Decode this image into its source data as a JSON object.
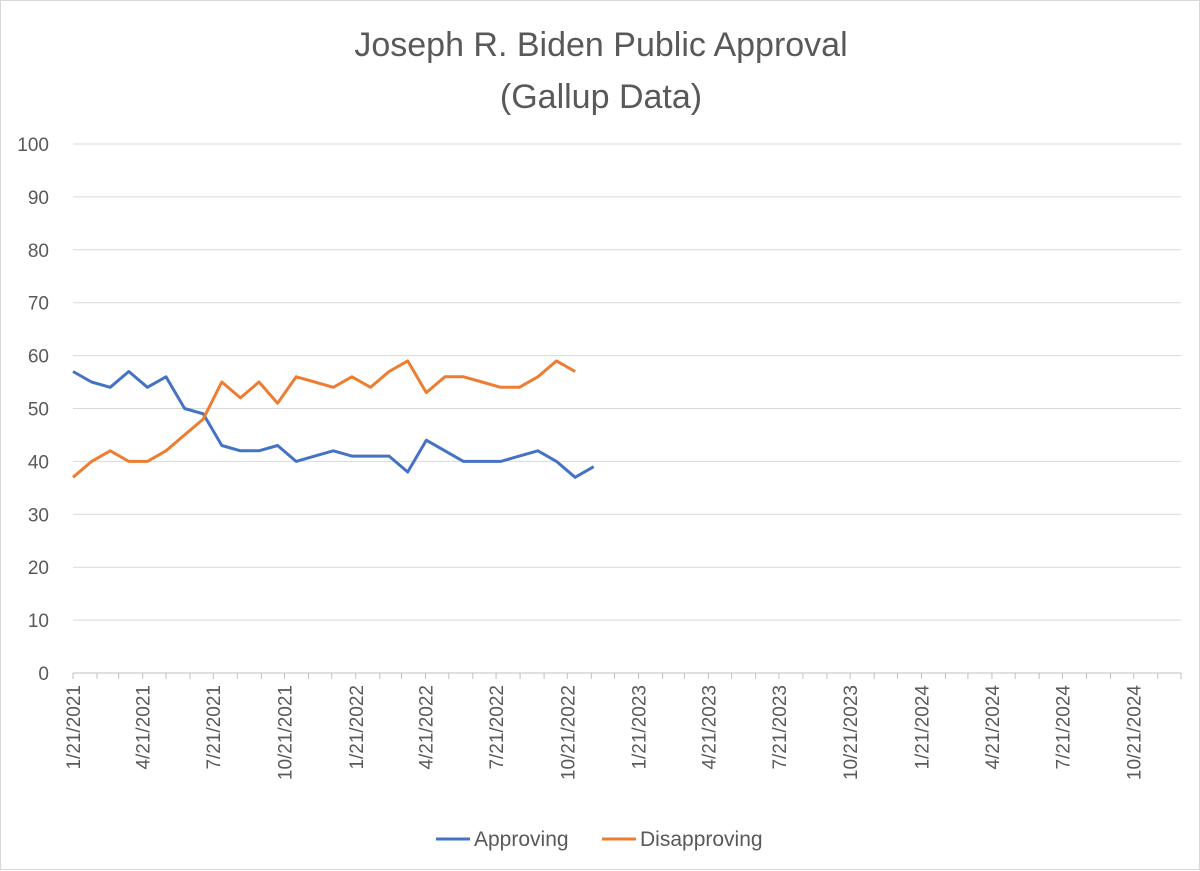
{
  "chart_data": {
    "type": "line",
    "title": "Joseph R. Biden Public Approval",
    "subtitle": "(Gallup Data)",
    "xlabel": "",
    "ylabel": "",
    "x_axis_type": "date",
    "xlim": [
      "2021-01-21",
      "2024-12-21"
    ],
    "ylim": [
      0,
      100
    ],
    "y_ticks": [
      "0",
      "10",
      "20",
      "30",
      "40",
      "50",
      "60",
      "70",
      "80",
      "90",
      "100"
    ],
    "x_ticks": [
      "1/21/2021",
      "4/21/2021",
      "7/21/2021",
      "10/21/2021",
      "1/21/2022",
      "4/21/2022",
      "7/21/2022",
      "10/21/2022",
      "1/21/2023",
      "4/21/2023",
      "7/21/2023",
      "10/21/2023",
      "1/21/2024",
      "4/21/2024",
      "7/21/2024",
      "10/21/2024"
    ],
    "grid": true,
    "legend_position": "bottom",
    "series": [
      {
        "name": "Approving",
        "color": "#4472c4",
        "x": [
          "2021-01-21",
          "2021-02-14",
          "2021-03-10",
          "2021-04-03",
          "2021-04-27",
          "2021-05-21",
          "2021-06-14",
          "2021-07-08",
          "2021-08-01",
          "2021-08-25",
          "2021-09-18",
          "2021-10-12",
          "2021-11-05",
          "2021-11-29",
          "2021-12-23",
          "2022-01-16",
          "2022-02-09",
          "2022-03-05",
          "2022-03-29",
          "2022-04-22",
          "2022-05-16",
          "2022-06-09",
          "2022-07-03",
          "2022-07-27",
          "2022-08-20",
          "2022-09-13",
          "2022-10-07",
          "2022-10-31",
          "2022-11-24",
          "2022-12-18",
          "2023-01-11",
          "2023-02-04",
          "2023-02-28",
          "2023-03-24",
          "2023-04-17"
        ],
        "values": [
          57,
          55,
          54,
          57,
          54,
          56,
          50,
          49,
          43,
          42,
          42,
          43,
          40,
          41,
          42,
          41,
          41,
          41,
          38,
          44,
          42,
          40,
          40,
          40,
          41,
          42,
          40,
          37,
          39,
          null,
          null,
          null,
          null,
          null,
          null
        ]
      },
      {
        "name": "Disapproving",
        "color": "#ed7d31",
        "x": [
          "2021-01-21",
          "2021-02-14",
          "2021-03-10",
          "2021-04-03",
          "2021-04-27",
          "2021-05-21",
          "2021-06-14",
          "2021-07-08",
          "2021-08-01",
          "2021-08-25",
          "2021-09-18",
          "2021-10-12",
          "2021-11-05",
          "2021-11-29",
          "2021-12-23",
          "2022-01-16",
          "2022-02-09",
          "2022-03-05",
          "2022-03-29",
          "2022-04-22",
          "2022-05-16",
          "2022-06-09",
          "2022-07-03",
          "2022-07-27",
          "2022-08-20",
          "2022-09-13",
          "2022-10-07",
          "2022-10-31",
          "2022-11-24",
          "2022-12-18",
          "2023-01-11",
          "2023-02-04",
          "2023-02-28",
          "2023-03-24",
          "2023-04-17"
        ],
        "values": [
          37,
          40,
          42,
          40,
          40,
          42,
          45,
          48,
          55,
          52,
          55,
          51,
          56,
          55,
          54,
          56,
          54,
          57,
          59,
          53,
          56,
          56,
          55,
          54,
          54,
          56,
          59,
          57,
          null,
          null,
          null,
          null,
          null,
          null,
          null
        ]
      }
    ]
  }
}
